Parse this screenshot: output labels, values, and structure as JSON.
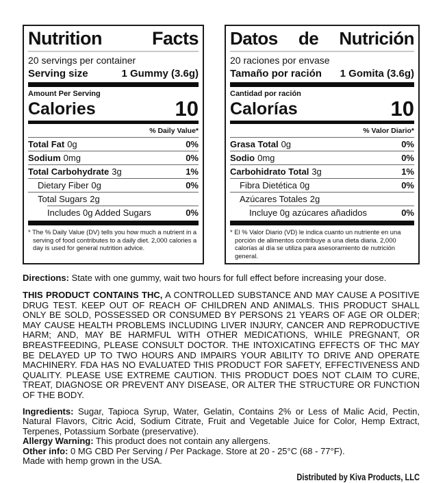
{
  "panels": [
    {
      "title": "Nutrition Facts",
      "servings_per_container": "20 servings per container",
      "serving_size_label": "Serving size",
      "serving_size_value": "1 Gummy (3.6g)",
      "amount_per_serving": "Amount Per Serving",
      "calories_label": "Calories",
      "calories_value": "10",
      "dv_header": "% Daily Value*",
      "rows": [
        {
          "name": "Total Fat",
          "amount": "0g",
          "dv": "0%"
        },
        {
          "name": "Sodium",
          "amount": "0mg",
          "dv": "0%"
        },
        {
          "name": "Total Carbohydrate",
          "amount": "3g",
          "dv": "1%"
        },
        {
          "name": "Dietary Fiber",
          "amount": "0g",
          "dv": "0%"
        },
        {
          "name": "Total Sugars",
          "amount": "2g",
          "dv": ""
        },
        {
          "name": "Includes 0g Added Sugars",
          "amount": "",
          "dv": "0%"
        }
      ],
      "footnote": "* The % Daily Value (DV) tells you how much a nutrient in a serving of food contributes to a daily diet. 2,000 calories a day is used for general nutrition advice."
    },
    {
      "title": "Datos de Nutrición",
      "servings_per_container": "20 raciones por envase",
      "serving_size_label": "Tamaño por ración",
      "serving_size_value": "1 Gomita (3.6g)",
      "amount_per_serving": "Cantidad por ración",
      "calories_label": "Calorías",
      "calories_value": "10",
      "dv_header": "% Valor Diario*",
      "rows": [
        {
          "name": "Grasa Total",
          "amount": "0g",
          "dv": "0%"
        },
        {
          "name": "Sodio",
          "amount": "0mg",
          "dv": "0%"
        },
        {
          "name": "Carbohidrato Total",
          "amount": "3g",
          "dv": "1%"
        },
        {
          "name": "Fibra Dietética",
          "amount": "0g",
          "dv": "0%"
        },
        {
          "name": "Azúcares Totales",
          "amount": "2g",
          "dv": ""
        },
        {
          "name": "Incluye 0g azúcares añadidos",
          "amount": "",
          "dv": "0%"
        }
      ],
      "footnote": "* El % Valor Diario (VD) le indica cuanto un nutriente en una porción de alimentos contribuye a una dieta diaria. 2,000 calorías al día se utiliza para asesoramiento de nutrición general."
    }
  ],
  "info": {
    "directions_label": "Directions:",
    "directions_text": " State with one gummy, wait two hours for full effect before increasing your dose.",
    "warning_bold": "THIS PRODUCT CONTAINS THC,",
    "warning_text": " A CONTROLLED SUBSTANCE AND MAY CAUSE A POSITIVE DRUG TEST. KEEP OUT OF REACH OF CHILDREN AND ANIMALS. THIS PRODUCT SHALL ONLY BE SOLD, POSSESSED OR CONSUMED BY PERSONS 21 YEARS OF AGE OR OLDER; MAY CAUSE HEALTH PROBLEMS INCLUDING LIVER INJURY, CANCER AND REPRODUCTIVE HARM; AND, MAY BE HARMFUL WITH OTHER MEDICATIONS, WHILE PREGNANT, OR BREASTFEEDING, PLEASE CONSULT DOCTOR. THE INTOXICATING EFFECTS OF THC MAY BE DELAYED UP TO TWO HOURS AND IMPAIRS YOUR ABILITY TO DRIVE AND OPERATE MACHINERY. FDA HAS NO EVALUATED THIS PRODUCT FOR SAFETY, EFFECTIVENESS AND QUALITY. PLEASE USE EXTREME CAUTION. THIS PRODUCT DOES NOT CLAIM TO CURE, TREAT, DIAGNOSE OR PREVENT ANY DISEASE, OR ALTER THE STRUCTURE OR FUNCTION OF THE BODY.",
    "ingredients_label": "Ingredients:",
    "ingredients_text": " Sugar, Tapioca Syrup, Water, Gelatin, Contains 2% or Less of Malic Acid, Pectin, Natural Flavors, Citric Acid, Sodium Citrate, Fruit and Vegetable Juice for Color, Hemp Extract, Terpenes, Potassium Sorbate (preservative).",
    "allergy_label": "Allergy Warning:",
    "allergy_text": " This product does not contain any allergens.",
    "other_label": "Other info:",
    "other_text": " 0 MG CBD Per Serving / Per Package. Store at 20 - 25°C (68 - 77°F).",
    "hemp_text": "Made with hemp grown in the USA.",
    "distributor": "Distributed by Kiva Products, LLC"
  }
}
